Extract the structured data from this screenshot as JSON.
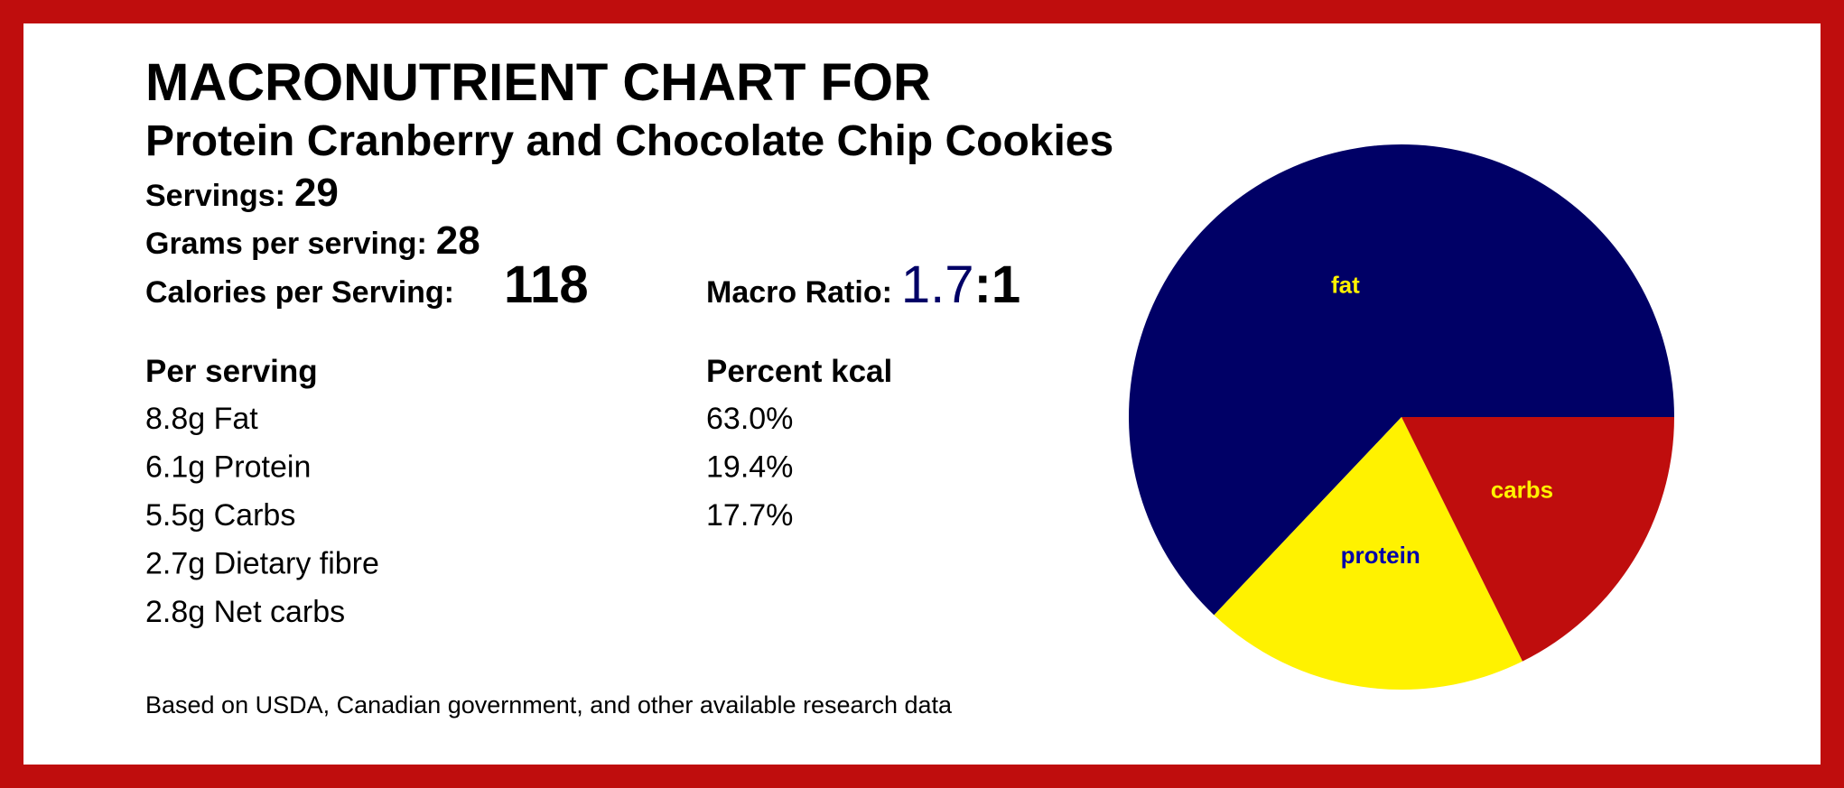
{
  "header": {
    "title": "MACRONUTRIENT CHART FOR",
    "subtitle": "Protein Cranberry and Chocolate Chip Cookies"
  },
  "stats": {
    "servings_label": "Servings:",
    "servings": "29",
    "grams_label": "Grams per serving:",
    "grams": "28",
    "calories_label": "Calories per Serving:",
    "calories": "118",
    "ratio_label": "Macro Ratio:",
    "ratio": "1.7",
    "ratio_suffix": ":1"
  },
  "per_serving": {
    "heading": "Per serving",
    "rows": [
      "8.8g Fat",
      "6.1g Protein",
      "5.5g Carbs",
      "2.7g Dietary fibre",
      "2.8g Net carbs"
    ]
  },
  "percent_heading": "Percent kcal",
  "footer": "Based on USDA, Canadian government, and other available research data",
  "chart_data": {
    "type": "pie",
    "categories": [
      "fat",
      "protein",
      "carbs"
    ],
    "values": [
      63.0,
      19.4,
      17.7
    ],
    "value_labels": [
      "63.0%",
      "19.4%",
      "17.7%"
    ],
    "colors": [
      "#000066",
      "#fff200",
      "#bf0d0d"
    ],
    "label_colors": [
      "#fff200",
      "#0000aa",
      "#fff200"
    ]
  }
}
